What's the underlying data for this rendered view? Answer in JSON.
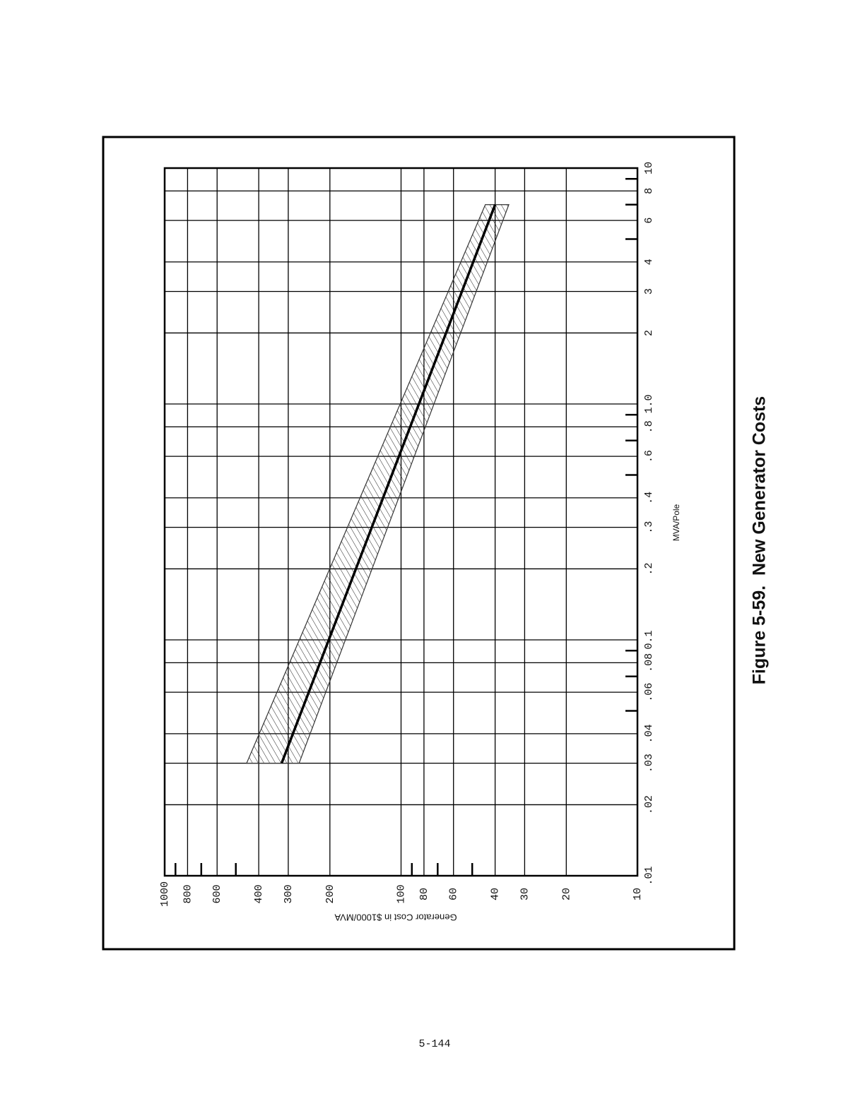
{
  "chart_data": {
    "type": "line",
    "title": "Figure 5-59.  New Generator Costs",
    "x_label": "MVA/Pole",
    "y_label": "Generator Cost in $1000/MVA",
    "x_log": true,
    "y_log": true,
    "grid": true,
    "xlim": [
      0.01,
      10
    ],
    "xticks": [
      {
        "value": 0.01,
        "label": ".01"
      },
      {
        "value": 0.02,
        "label": ".02"
      },
      {
        "value": 0.03,
        "label": ".03"
      },
      {
        "value": 0.04,
        "label": ".04"
      },
      {
        "value": 0.06,
        "label": ".06"
      },
      {
        "value": 0.08,
        "label": ".08"
      },
      0.1,
      {
        "value": 0.2,
        "label": ".2"
      },
      {
        "value": 0.3,
        "label": ".3"
      },
      {
        "value": 0.4,
        "label": ".4"
      },
      {
        "value": 0.6,
        "label": ".6"
      },
      {
        "value": 0.8,
        "label": ".8"
      },
      {
        "value": 1,
        "label": "1.0"
      },
      2,
      3,
      4,
      6,
      8,
      10
    ],
    "xminor": [
      0.05,
      0.07,
      0.09,
      0.5,
      0.7,
      0.9,
      5,
      7,
      9
    ],
    "ylim": [
      10,
      1000
    ],
    "yticks": [
      1000,
      800,
      600,
      400,
      300,
      200,
      100,
      80,
      60,
      40,
      30,
      20,
      10
    ],
    "yminor": [
      900,
      700,
      500,
      90,
      70,
      50
    ],
    "x": [
      0.03,
      7
    ],
    "series": [
      {
        "color": "#000000",
        "values": [
          320,
          40
        ]
      }
    ],
    "band": {
      "color": "#333333",
      "upper": [
        450,
        44
      ],
      "lower": [
        270,
        35
      ]
    }
  },
  "page_number": "5-144"
}
